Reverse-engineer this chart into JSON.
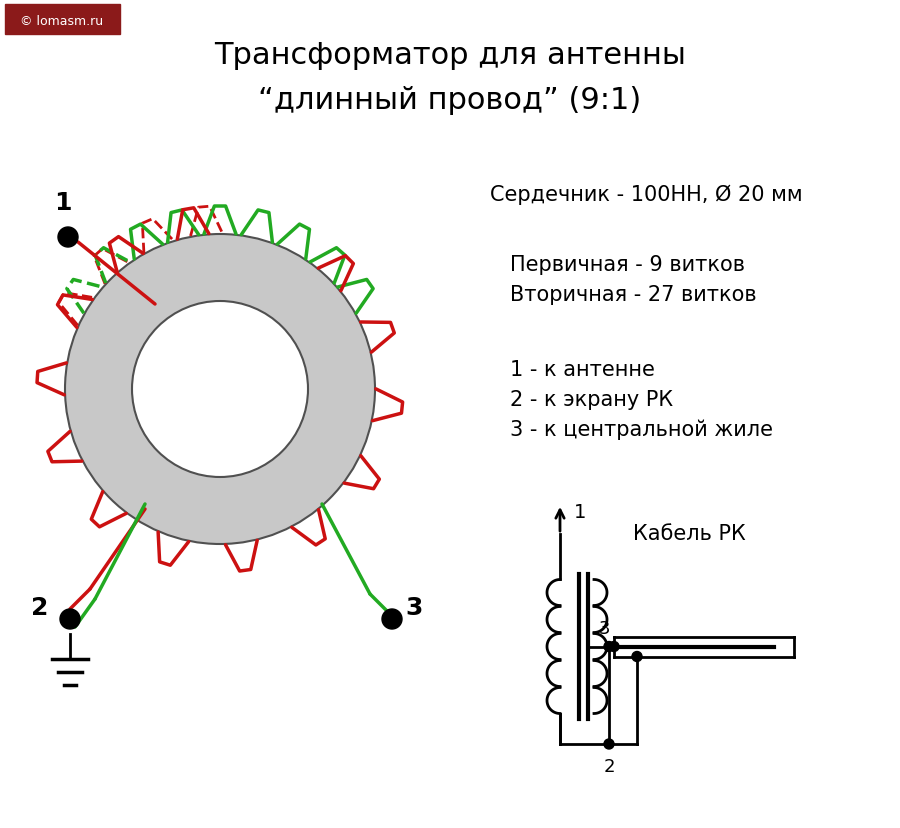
{
  "title_line1": "Трансформатор для антенны",
  "title_line2": "“длинный провод” (9:1)",
  "watermark": "© lomasm.ru",
  "info_line1": "Сердечник - 100НН, Ø 20 мм",
  "info_line2": "Первичная - 9 витков",
  "info_line3": "Вторичная - 27 витков",
  "info_line4": "1 - к антенне",
  "info_line5": "2 - к экрану РК",
  "info_line6": "3 - к центральной жиле",
  "cable_label": "Кабель РК",
  "bg_color": "#ffffff",
  "toroid_color": "#c8c8c8",
  "toroid_edge": "#505050",
  "red_wire": "#cc1111",
  "green_wire": "#22aa22",
  "black": "#000000",
  "title_fontsize": 22,
  "info_fontsize": 15
}
